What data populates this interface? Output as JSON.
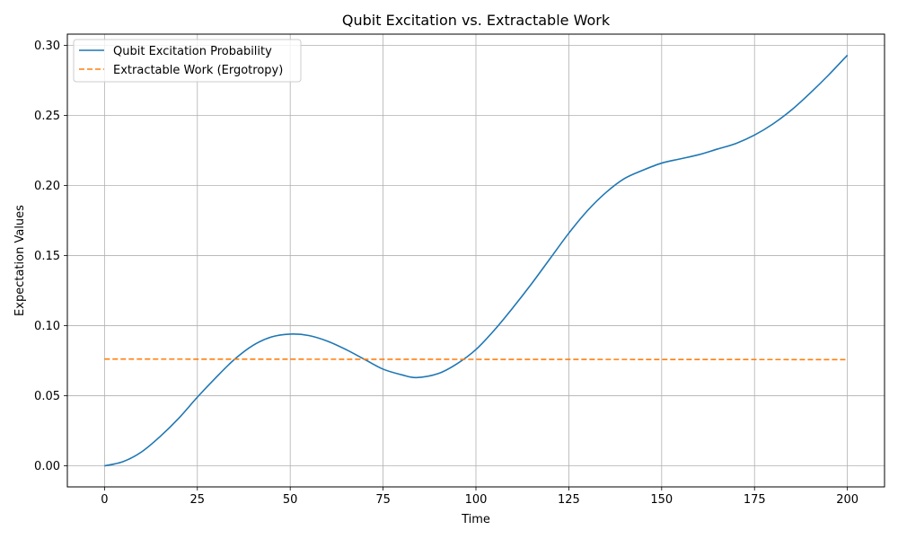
{
  "chart_data": {
    "type": "line",
    "title": "Qubit Excitation vs. Extractable Work",
    "xlabel": "Time",
    "ylabel": "Expectation Values",
    "xlim": [
      -10,
      210
    ],
    "ylim": [
      -0.015,
      0.308
    ],
    "x_ticks": [
      0,
      25,
      50,
      75,
      100,
      125,
      150,
      175,
      200
    ],
    "x_tick_labels": [
      "0",
      "25",
      "50",
      "75",
      "100",
      "125",
      "150",
      "175",
      "200"
    ],
    "y_ticks": [
      0.0,
      0.05,
      0.1,
      0.15,
      0.2,
      0.25,
      0.3
    ],
    "y_tick_labels": [
      "0.00",
      "0.05",
      "0.10",
      "0.15",
      "0.20",
      "0.25",
      "0.30"
    ],
    "grid": true,
    "legend_position": "top-left",
    "series": [
      {
        "name": "Qubit Excitation Probability",
        "color": "#1f77b4",
        "style": "solid",
        "x": [
          0,
          5,
          10,
          15,
          20,
          25,
          30,
          35,
          40,
          45,
          50,
          55,
          60,
          65,
          70,
          75,
          80,
          84,
          90,
          95,
          100,
          105,
          110,
          115,
          120,
          125,
          130,
          135,
          140,
          145,
          150,
          155,
          160,
          165,
          170,
          175,
          180,
          185,
          190,
          195,
          200
        ],
        "y": [
          0.0,
          0.003,
          0.01,
          0.021,
          0.034,
          0.049,
          0.063,
          0.076,
          0.086,
          0.092,
          0.094,
          0.093,
          0.089,
          0.083,
          0.076,
          0.069,
          0.065,
          0.063,
          0.066,
          0.073,
          0.083,
          0.097,
          0.113,
          0.13,
          0.148,
          0.166,
          0.182,
          0.195,
          0.205,
          0.211,
          0.216,
          0.219,
          0.222,
          0.226,
          0.23,
          0.236,
          0.244,
          0.254,
          0.266,
          0.279,
          0.293
        ]
      },
      {
        "name": "Extractable Work (Ergotropy)",
        "color": "#ff7f0e",
        "style": "dashed",
        "x": [
          0,
          50,
          100,
          150,
          200
        ],
        "y": [
          0.0762,
          0.0761,
          0.076,
          0.0759,
          0.0758
        ]
      }
    ]
  }
}
